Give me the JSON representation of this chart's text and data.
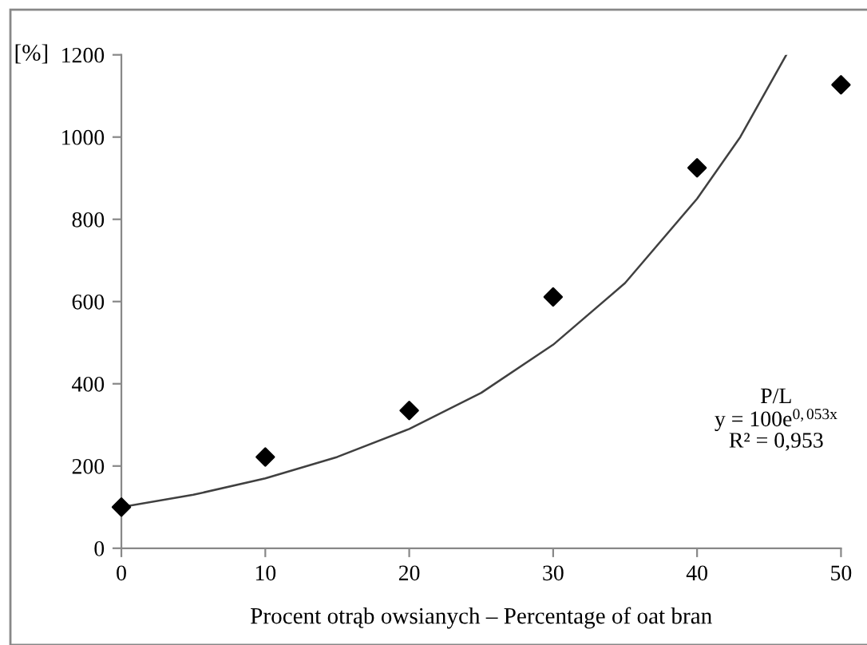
{
  "chart_data": {
    "type": "scatter",
    "xlabel": "Procent otrąb owsianych – Percentage of oat bran",
    "ylabel": "[%]",
    "xlim": [
      0,
      50
    ],
    "xticks": [
      0,
      10,
      20,
      30,
      40,
      50
    ],
    "ylim": [
      0,
      1200
    ],
    "yticks": [
      0,
      200,
      400,
      600,
      800,
      1000,
      1200
    ],
    "grid": false,
    "legend": false,
    "annotations": [
      "P/L",
      "y = 100e$^{0,053x}$",
      "R² = 0,953"
    ],
    "series": [
      {
        "color": "#000000",
        "marker": "diamond",
        "x": [
          0,
          10,
          20,
          30,
          40,
          50
        ],
        "values": [
          100,
          222,
          335,
          611,
          925,
          1127
        ]
      },
      {
        "type": "line",
        "color": "#404040",
        "marker": "none",
        "line_style": "solid",
        "x": [
          0,
          5,
          10,
          15,
          20,
          25,
          30,
          35,
          40,
          43,
          46.2
        ],
        "values": [
          100,
          130,
          170,
          222,
          290,
          378,
          495,
          645,
          850,
          1000,
          1200
        ]
      }
    ]
  }
}
